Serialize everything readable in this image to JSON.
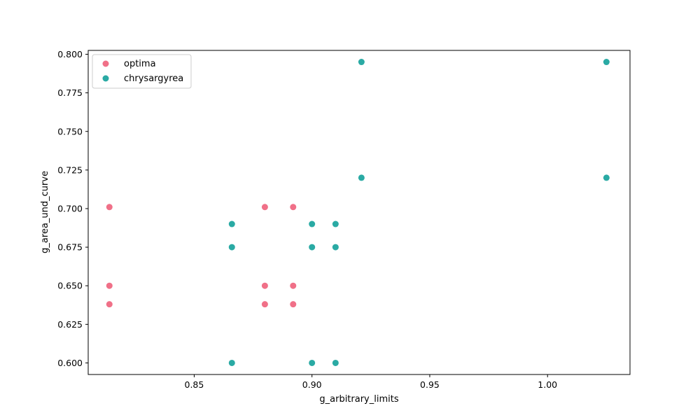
{
  "chart_data": {
    "type": "scatter",
    "title": "",
    "xlabel": "g_arbitrary_limits",
    "ylabel": "g_area_und_curve",
    "xlim": [
      0.805,
      1.035
    ],
    "ylim": [
      0.5925,
      0.8025
    ],
    "xticks": [
      0.85,
      0.9,
      0.95,
      1.0
    ],
    "xtick_labels": [
      "0.85",
      "0.90",
      "0.95",
      "1.00"
    ],
    "yticks": [
      0.6,
      0.625,
      0.65,
      0.675,
      0.7,
      0.725,
      0.75,
      0.775,
      0.8
    ],
    "ytick_labels": [
      "0.600",
      "0.625",
      "0.650",
      "0.675",
      "0.700",
      "0.725",
      "0.750",
      "0.775",
      "0.800"
    ],
    "grid": false,
    "legend_position": "top-left",
    "series": [
      {
        "name": "optima",
        "color": "#f07088",
        "points": [
          {
            "x": 0.814,
            "y": 0.701
          },
          {
            "x": 0.814,
            "y": 0.65
          },
          {
            "x": 0.814,
            "y": 0.638
          },
          {
            "x": 0.88,
            "y": 0.701
          },
          {
            "x": 0.88,
            "y": 0.65
          },
          {
            "x": 0.88,
            "y": 0.638
          },
          {
            "x": 0.892,
            "y": 0.701
          },
          {
            "x": 0.892,
            "y": 0.65
          },
          {
            "x": 0.892,
            "y": 0.638
          }
        ]
      },
      {
        "name": "chrysargyrea",
        "color": "#2aaaa4",
        "points": [
          {
            "x": 0.866,
            "y": 0.69
          },
          {
            "x": 0.866,
            "y": 0.675
          },
          {
            "x": 0.866,
            "y": 0.6
          },
          {
            "x": 0.9,
            "y": 0.69
          },
          {
            "x": 0.9,
            "y": 0.675
          },
          {
            "x": 0.9,
            "y": 0.6
          },
          {
            "x": 0.91,
            "y": 0.69
          },
          {
            "x": 0.91,
            "y": 0.675
          },
          {
            "x": 0.91,
            "y": 0.6
          },
          {
            "x": 0.921,
            "y": 0.795
          },
          {
            "x": 0.921,
            "y": 0.72
          },
          {
            "x": 1.025,
            "y": 0.795
          },
          {
            "x": 1.025,
            "y": 0.72
          }
        ]
      }
    ]
  }
}
